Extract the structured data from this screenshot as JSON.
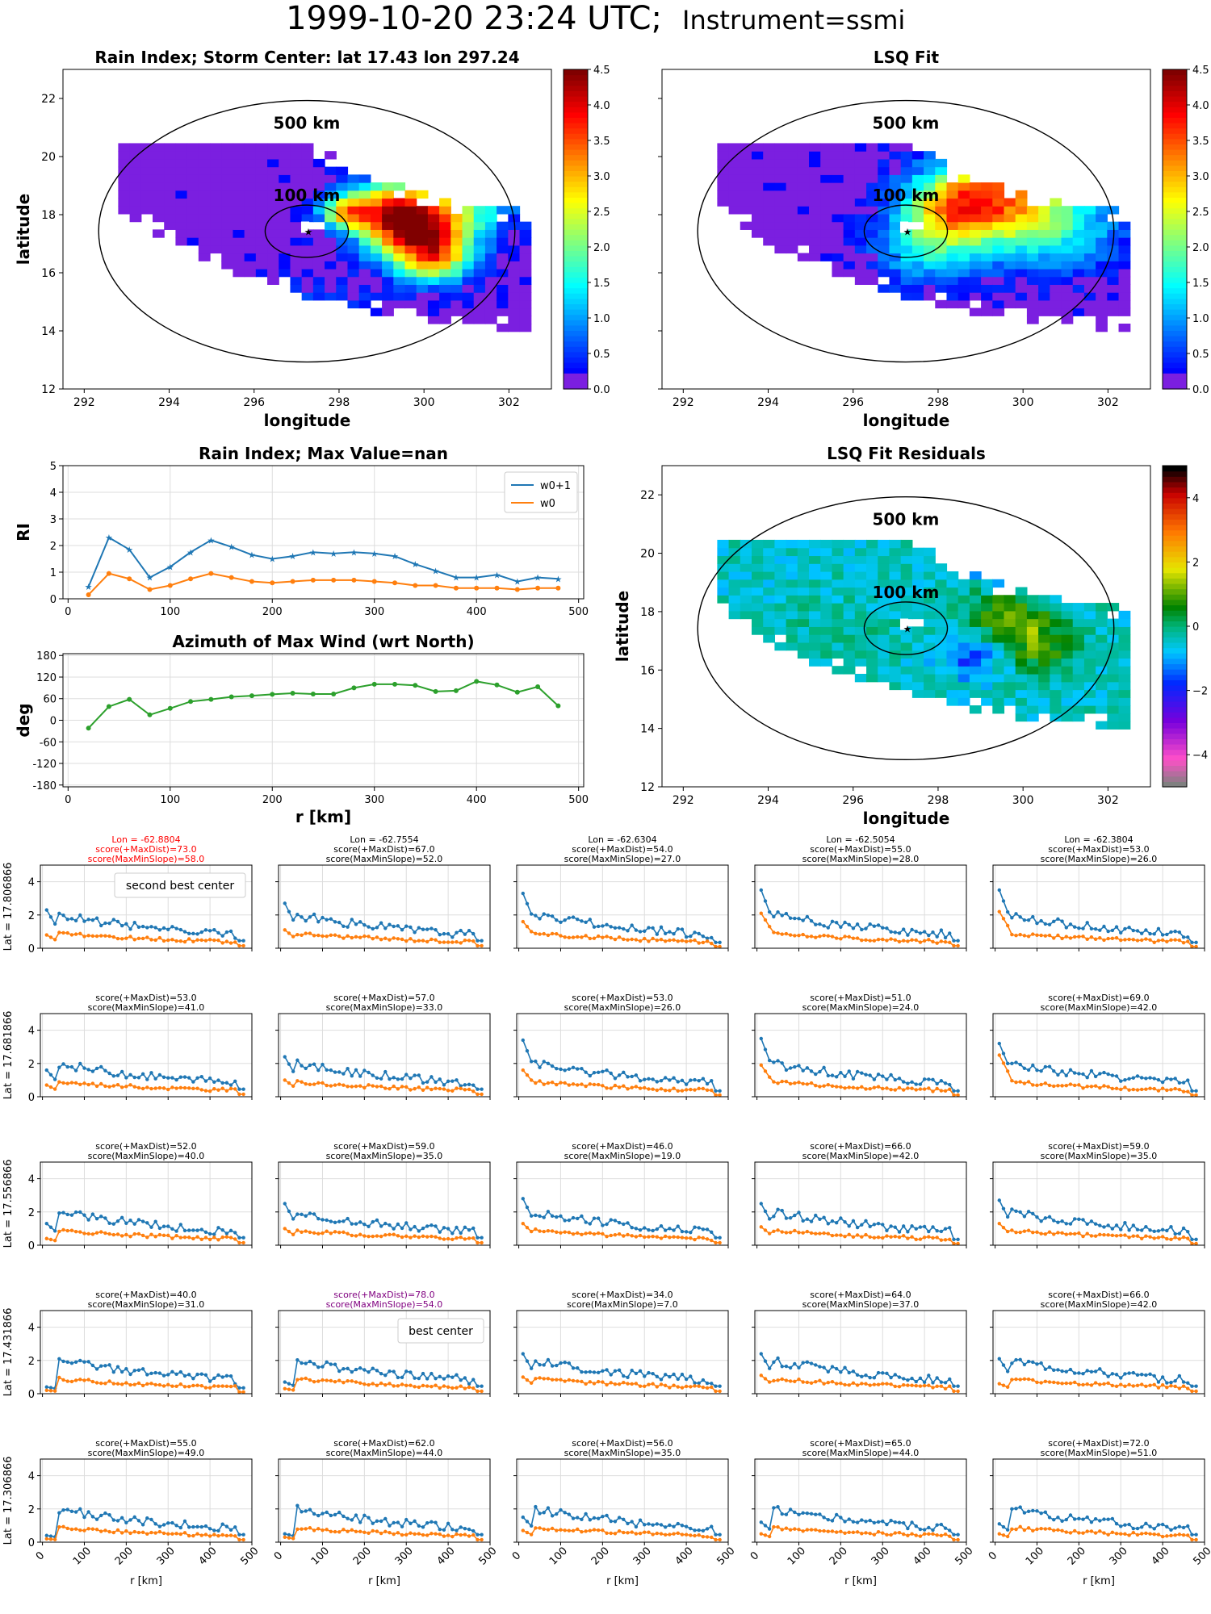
{
  "figure": {
    "suptitle_main": "1999-10-20 23:24 UTC;",
    "suptitle_instrument": "Instrument=ssmi"
  },
  "colors": {
    "w0p1": "#1f77b4",
    "w0": "#ff7f0e",
    "azimuth": "#2ca02c",
    "grid": "#dddddd",
    "highlight_red": "#ff0000",
    "highlight_purple": "#800080",
    "rain_background": "#7b1fe0"
  },
  "chart_data": [
    {
      "id": "rain_index_map",
      "type": "heatmap",
      "title": "Rain Index; Storm Center: lat 17.43 lon 297.24",
      "xlabel": "longitude",
      "ylabel": "latitude",
      "xlim": [
        291.5,
        303
      ],
      "ylim": [
        12,
        23
      ],
      "xticks": [
        292,
        294,
        296,
        298,
        300,
        302
      ],
      "yticks": [
        12,
        14,
        16,
        18,
        20,
        22
      ],
      "center": {
        "lon": 297.24,
        "lat": 17.43
      },
      "rings": [
        {
          "label": "500 km"
        },
        {
          "label": "100 km"
        }
      ],
      "colorbar": {
        "min": 0,
        "max": 4.5,
        "ticks": [
          "0.0",
          "0.5",
          "1.0",
          "1.5",
          "2.0",
          "2.5",
          "3.0",
          "3.5",
          "4.0",
          "4.5"
        ],
        "cmap": "jet"
      },
      "features": [
        {
          "lon": 299.8,
          "lat": 17.1,
          "value": 3.3,
          "r": 1.1
        },
        {
          "lon": 299.0,
          "lat": 18.0,
          "value": 2.8,
          "r": 1.0
        },
        {
          "lon": 300.6,
          "lat": 18.4,
          "value": 1.9,
          "r": 1.3
        },
        {
          "lon": 300.2,
          "lat": 16.2,
          "value": 1.6,
          "r": 0.8
        },
        {
          "lon": 298.0,
          "lat": 18.0,
          "value": 2.2,
          "r": 0.6
        },
        {
          "lon": 297.4,
          "lat": 14.3,
          "value": 0.6,
          "r": 1.4
        }
      ]
    },
    {
      "id": "lsq_fit_map",
      "type": "heatmap",
      "title": "LSQ Fit",
      "xlabel": "longitude",
      "ylabel": "",
      "xlim": [
        291.5,
        303
      ],
      "ylim": [
        12,
        23
      ],
      "xticks": [
        292,
        294,
        296,
        298,
        300,
        302
      ],
      "yticks": [
        12,
        14,
        16,
        18,
        20,
        22
      ],
      "center": {
        "lon": 297.24,
        "lat": 17.43
      },
      "rings": [
        {
          "label": "500 km"
        },
        {
          "label": "100 km"
        }
      ],
      "colorbar": {
        "min": 0,
        "max": 4.5,
        "ticks": [
          "0.0",
          "0.5",
          "1.0",
          "1.5",
          "2.0",
          "2.5",
          "3.0",
          "3.5",
          "4.0",
          "4.5"
        ],
        "cmap": "jet"
      },
      "features": [
        {
          "lon": 298.3,
          "lat": 18.1,
          "value": 2.6,
          "r": 1.3
        },
        {
          "lon": 299.5,
          "lat": 18.8,
          "value": 1.9,
          "r": 1.6
        },
        {
          "lon": 300.6,
          "lat": 17.5,
          "value": 1.4,
          "r": 1.6
        },
        {
          "lon": 297.5,
          "lat": 16.6,
          "value": 1.1,
          "r": 1.2
        }
      ]
    },
    {
      "id": "rain_index_profile",
      "type": "line",
      "title": "Rain Index; Max Value=nan",
      "xlabel": "",
      "ylabel": "RI",
      "xlim": [
        -5,
        505
      ],
      "ylim": [
        0,
        5
      ],
      "xticks": [
        0,
        100,
        200,
        300,
        400,
        500
      ],
      "yticks": [
        0,
        1,
        2,
        3,
        4,
        5
      ],
      "legend": "top-right",
      "x": [
        20,
        40,
        60,
        80,
        100,
        120,
        140,
        160,
        180,
        200,
        220,
        240,
        260,
        280,
        300,
        320,
        340,
        360,
        380,
        400,
        420,
        440,
        460,
        480
      ],
      "series": [
        {
          "name": "w0+1",
          "marker": "star",
          "values": [
            0.45,
            2.3,
            1.85,
            0.8,
            1.2,
            1.75,
            2.2,
            1.95,
            1.65,
            1.5,
            1.6,
            1.75,
            1.7,
            1.75,
            1.7,
            1.6,
            1.3,
            1.05,
            0.8,
            0.8,
            0.9,
            0.65,
            0.8,
            0.75
          ]
        },
        {
          "name": "w0",
          "marker": "dot",
          "values": [
            0.15,
            0.95,
            0.75,
            0.35,
            0.5,
            0.75,
            0.95,
            0.8,
            0.65,
            0.6,
            0.65,
            0.7,
            0.7,
            0.7,
            0.65,
            0.6,
            0.5,
            0.5,
            0.4,
            0.4,
            0.4,
            0.35,
            0.4,
            0.4
          ]
        }
      ]
    },
    {
      "id": "azimuth_profile",
      "type": "line",
      "title": "Azimuth of Max Wind (wrt North)",
      "xlabel": "r [km]",
      "ylabel": "deg",
      "xlim": [
        -5,
        505
      ],
      "ylim": [
        -185,
        185
      ],
      "xticks": [
        0,
        100,
        200,
        300,
        400,
        500
      ],
      "yticks": [
        -180,
        -120,
        -60,
        0,
        60,
        120,
        180
      ],
      "x": [
        20,
        40,
        60,
        80,
        100,
        120,
        140,
        160,
        180,
        200,
        220,
        240,
        260,
        280,
        300,
        320,
        340,
        360,
        380,
        400,
        420,
        440,
        460,
        480
      ],
      "series": [
        {
          "values": [
            -22,
            38,
            58,
            15,
            33,
            52,
            58,
            65,
            68,
            72,
            75,
            73,
            73,
            90,
            100,
            100,
            97,
            80,
            82,
            108,
            98,
            78,
            93,
            40
          ]
        }
      ]
    },
    {
      "id": "residuals_map",
      "type": "heatmap",
      "title": "LSQ Fit Residuals",
      "xlabel": "longitude",
      "ylabel": "latitude",
      "xlim": [
        291.5,
        303
      ],
      "ylim": [
        12,
        23
      ],
      "xticks": [
        292,
        294,
        296,
        298,
        300,
        302
      ],
      "yticks": [
        12,
        14,
        16,
        18,
        20,
        22
      ],
      "center": {
        "lon": 297.24,
        "lat": 17.43
      },
      "rings": [
        {
          "label": "500 km"
        },
        {
          "label": "100 km"
        }
      ],
      "colorbar": {
        "min": -5,
        "max": 5,
        "ticks": [
          "−4",
          "−2",
          "0",
          "2",
          "4"
        ],
        "cmap": "residual"
      },
      "features": [
        {
          "lon": 299.9,
          "lat": 17.4,
          "value": 1.6,
          "r": 1.0
        },
        {
          "lon": 299.3,
          "lat": 18.3,
          "value": 1.3,
          "r": 0.8
        },
        {
          "lon": 300.4,
          "lat": 16.4,
          "value": 0.9,
          "r": 0.7
        },
        {
          "lon": 299.7,
          "lat": 19.0,
          "value": -1.5,
          "r": 1.0
        },
        {
          "lon": 298.6,
          "lat": 16.3,
          "value": -1.2,
          "r": 0.7
        },
        {
          "lon": 295.5,
          "lat": 16.8,
          "value": 0.3,
          "r": 1.5
        }
      ]
    },
    {
      "id": "center_grid",
      "type": "line",
      "xlabel": "r [km]",
      "xlim": [
        -5,
        500
      ],
      "ylim": [
        0,
        5
      ],
      "xticks": [
        0,
        100,
        200,
        300,
        400,
        500
      ],
      "yticks": [
        0,
        2,
        4
      ],
      "row_labels": [
        "Lat = 17.806866",
        "Lat = 17.681866",
        "Lat = 17.556866",
        "Lat = 17.431866",
        "Lat = 17.306866"
      ],
      "x": [
        10,
        20,
        30,
        40,
        50,
        60,
        70,
        80,
        90,
        100,
        110,
        120,
        130,
        140,
        150,
        160,
        170,
        180,
        190,
        200,
        210,
        220,
        230,
        240,
        250,
        260,
        270,
        280,
        290,
        300,
        310,
        320,
        330,
        340,
        350,
        360,
        370,
        380,
        390,
        400,
        410,
        420,
        430,
        440,
        450,
        460,
        470,
        480
      ],
      "cells": [
        {
          "title": [
            "Lon = -62.8804",
            "score(+MaxDist)=73.0",
            "score(MaxMinSlope)=58.0"
          ],
          "color": "red",
          "legend": "second best center",
          "a": 0.7,
          "b": 2.1,
          "c": 0.3,
          "s": 1
        },
        {
          "title": [
            "Lon = -62.7554",
            "score(+MaxDist)=67.0",
            "score(MaxMinSlope)=52.0"
          ],
          "a": 1.0,
          "b": 2.5,
          "c": 0.3,
          "s": 2
        },
        {
          "title": [
            "Lon = -62.6304",
            "score(+MaxDist)=54.0",
            "score(MaxMinSlope)=27.0"
          ],
          "a": 1.5,
          "b": 3.1,
          "c": 0.2,
          "s": 3
        },
        {
          "title": [
            "Lon = -62.5054",
            "score(+MaxDist)=55.0",
            "score(MaxMinSlope)=28.0"
          ],
          "a": 2.0,
          "b": 3.3,
          "c": 0.3,
          "s": 4
        },
        {
          "title": [
            "Lon = -62.3804",
            "score(+MaxDist)=53.0",
            "score(MaxMinSlope)=26.0"
          ],
          "a": 2.1,
          "b": 3.3,
          "c": 0.2,
          "s": 5
        },
        {
          "title": [
            "score(+MaxDist)=53.0",
            "score(MaxMinSlope)=41.0"
          ],
          "a": 0.6,
          "b": 1.4,
          "c": 0.3,
          "s": 6
        },
        {
          "title": [
            "score(+MaxDist)=57.0",
            "score(MaxMinSlope)=33.0"
          ],
          "a": 0.9,
          "b": 2.2,
          "c": 0.3,
          "s": 7
        },
        {
          "title": [
            "score(+MaxDist)=53.0",
            "score(MaxMinSlope)=26.0"
          ],
          "a": 1.5,
          "b": 3.2,
          "c": 0.2,
          "s": 8
        },
        {
          "title": [
            "score(+MaxDist)=51.0",
            "score(MaxMinSlope)=24.0"
          ],
          "a": 1.8,
          "b": 3.3,
          "c": 0.2,
          "s": 9
        },
        {
          "title": [
            "score(+MaxDist)=69.0",
            "score(MaxMinSlope)=42.0"
          ],
          "a": 2.4,
          "b": 3.0,
          "c": 0.2,
          "s": 10
        },
        {
          "title": [
            "score(+MaxDist)=52.0",
            "score(MaxMinSlope)=40.0"
          ],
          "a": 0.3,
          "b": 1.1,
          "c": 0.3,
          "s": 11
        },
        {
          "title": [
            "score(+MaxDist)=59.0",
            "score(MaxMinSlope)=35.0"
          ],
          "a": 0.9,
          "b": 2.3,
          "c": 0.3,
          "s": 12
        },
        {
          "title": [
            "score(+MaxDist)=46.0",
            "score(MaxMinSlope)=19.0"
          ],
          "a": 1.2,
          "b": 2.6,
          "c": 0.3,
          "s": 13
        },
        {
          "title": [
            "score(+MaxDist)=66.0",
            "score(MaxMinSlope)=42.0"
          ],
          "a": 1.0,
          "b": 2.3,
          "c": 0.2,
          "s": 14
        },
        {
          "title": [
            "score(+MaxDist)=59.0",
            "score(MaxMinSlope)=35.0"
          ],
          "a": 1.2,
          "b": 2.5,
          "c": 0.2,
          "s": 15
        },
        {
          "title": [
            "score(+MaxDist)=40.0",
            "score(MaxMinSlope)=31.0"
          ],
          "a": 0.1,
          "b": 0.2,
          "c": 0.2,
          "s": 16
        },
        {
          "title": [
            "score(+MaxDist)=78.0",
            "score(MaxMinSlope)=54.0"
          ],
          "color": "purple",
          "legend": "best center",
          "a": 0.2,
          "b": 0.5,
          "c": 0.3,
          "s": 17
        },
        {
          "title": [
            "score(+MaxDist)=34.0",
            "score(MaxMinSlope)=7.0"
          ],
          "a": 0.9,
          "b": 2.2,
          "c": 0.3,
          "s": 18
        },
        {
          "title": [
            "score(+MaxDist)=64.0",
            "score(MaxMinSlope)=37.0"
          ],
          "a": 1.0,
          "b": 2.2,
          "c": 0.3,
          "s": 19
        },
        {
          "title": [
            "score(+MaxDist)=66.0",
            "score(MaxMinSlope)=42.0"
          ],
          "a": 0.5,
          "b": 1.9,
          "c": 0.3,
          "s": 20
        },
        {
          "title": [
            "score(+MaxDist)=55.0",
            "score(MaxMinSlope)=49.0"
          ],
          "a": 0.1,
          "b": 0.2,
          "c": 0.3,
          "s": 21
        },
        {
          "title": [
            "score(+MaxDist)=62.0",
            "score(MaxMinSlope)=44.0"
          ],
          "a": 0.2,
          "b": 0.3,
          "c": 0.3,
          "s": 22
        },
        {
          "title": [
            "score(+MaxDist)=56.0",
            "score(MaxMinSlope)=35.0"
          ],
          "a": 0.6,
          "b": 1.3,
          "c": 0.3,
          "s": 23
        },
        {
          "title": [
            "score(+MaxDist)=65.0",
            "score(MaxMinSlope)=44.0"
          ],
          "a": 0.4,
          "b": 1.0,
          "c": 0.3,
          "s": 24
        },
        {
          "title": [
            "score(+MaxDist)=72.0",
            "score(MaxMinSlope)=51.0"
          ],
          "a": 0.4,
          "b": 0.9,
          "c": 0.3,
          "s": 25
        }
      ]
    }
  ]
}
